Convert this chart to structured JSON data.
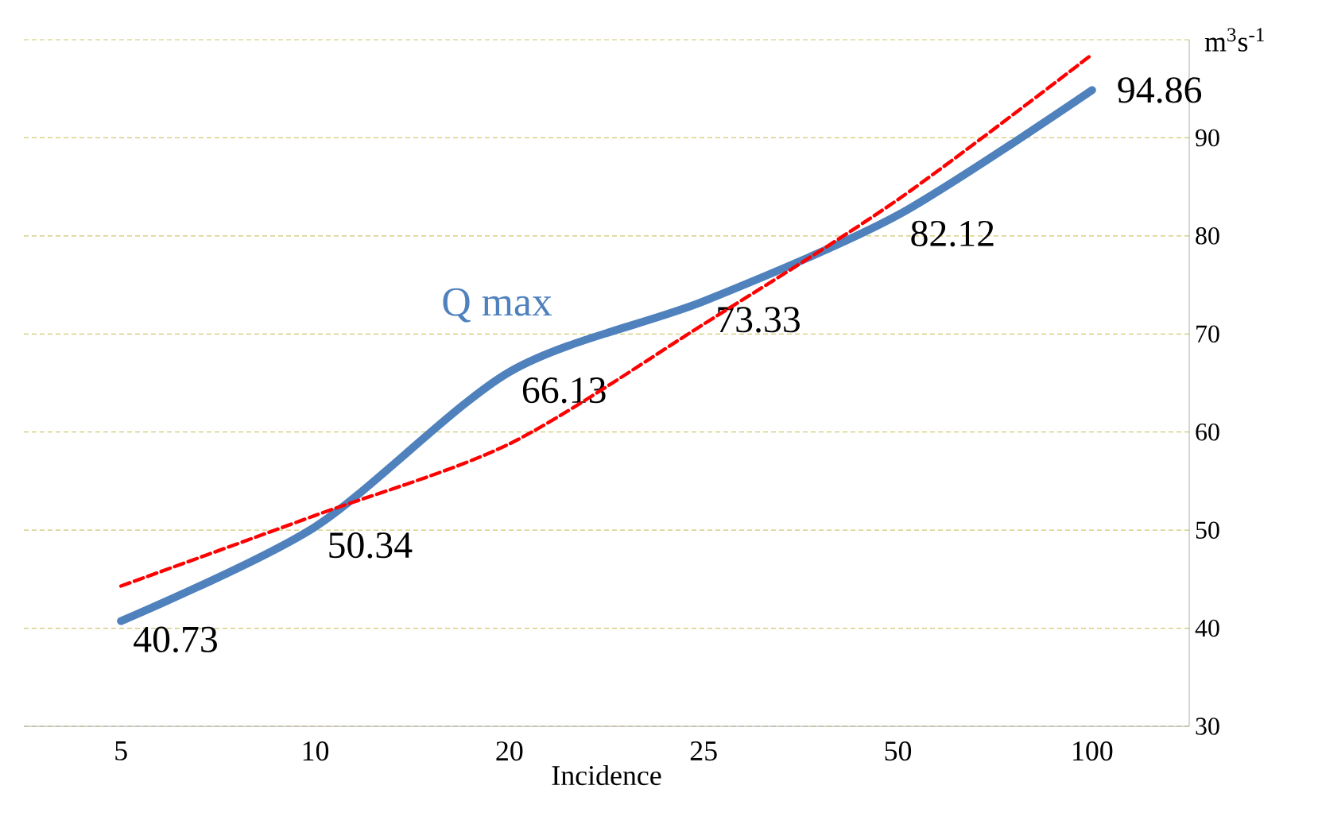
{
  "chart_data": {
    "type": "line",
    "xlabel": "Incidence",
    "ylabel": "m$^{3}$s$^{-1}$",
    "categories": [
      "5",
      "10",
      "20",
      "25",
      "50",
      "100"
    ],
    "series": [
      {
        "name": "Q max",
        "color": "#4f81bd",
        "values": [
          40.73,
          50.34,
          66.13,
          73.33,
          82.12,
          94.86
        ],
        "data_labels": true
      },
      {
        "type": "line",
        "color": "#ff0000",
        "line_style": "dashed",
        "values": [
          44.3,
          51.5,
          58.8,
          71.0,
          83.7,
          98.5
        ]
      }
    ],
    "ylim": [
      30,
      100
    ],
    "yticks": [
      30,
      40,
      50,
      60,
      70,
      80,
      90,
      {
        "value": 100,
        "label": null
      }
    ],
    "grid": "y",
    "legend": false
  }
}
